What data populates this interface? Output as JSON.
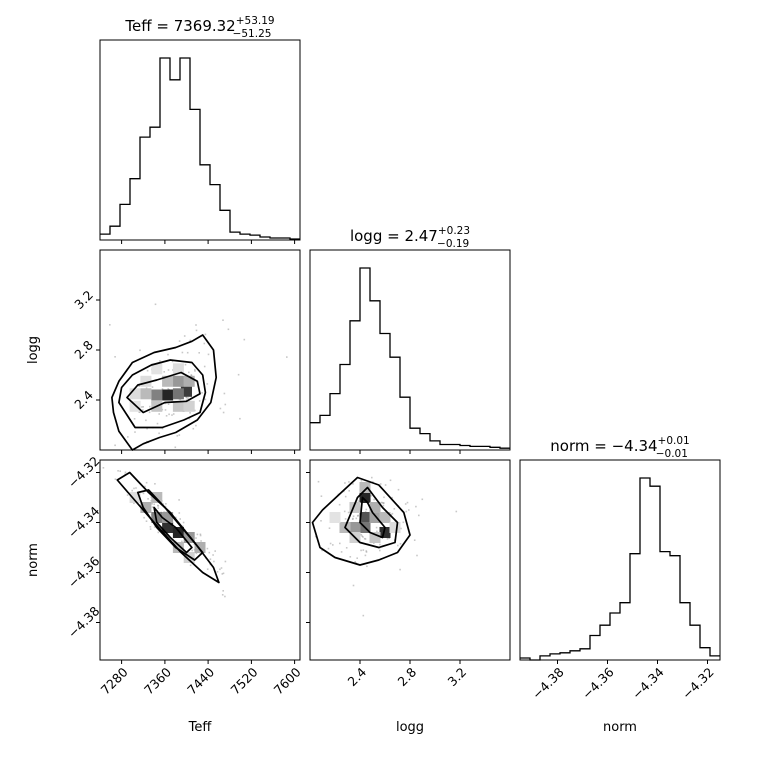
{
  "chart_data": {
    "type": "corner",
    "parameters": [
      "Teff",
      "logg",
      "norm"
    ],
    "titles": [
      {
        "param": "Teff",
        "prefix": "Teff = ",
        "value": "7369.32",
        "plus": "+53.19",
        "minus": "−51.25"
      },
      {
        "param": "logg",
        "prefix": "logg = ",
        "value": "2.47",
        "plus": "+0.23",
        "minus": "−0.19"
      },
      {
        "param": "norm",
        "prefix": "norm = ",
        "value": "−4.34",
        "plus": "+0.01",
        "minus": "−0.01"
      }
    ],
    "ranges": {
      "Teff": [
        7240,
        7610
      ],
      "logg": [
        2.0,
        3.6
      ],
      "norm": [
        -4.395,
        -4.315
      ]
    },
    "ticks": {
      "Teff": {
        "values": [
          7280,
          7360,
          7440,
          7520,
          7600
        ],
        "labels": [
          "7280",
          "7360",
          "7440",
          "7520",
          "7600"
        ]
      },
      "logg": {
        "values": [
          2.4,
          2.8,
          3.2
        ],
        "labels": [
          "2.4",
          "2.8",
          "3.2"
        ]
      },
      "norm": {
        "values": [
          -4.38,
          -4.36,
          -4.34,
          -4.32
        ],
        "labels": [
          "−4.38",
          "−4.36",
          "−4.34",
          "−4.32"
        ]
      }
    },
    "histograms": {
      "Teff": {
        "edges": [
          7240,
          7258.5,
          7277,
          7295.5,
          7314,
          7332.5,
          7351,
          7369.5,
          7388,
          7406.5,
          7425,
          7443.5,
          7462,
          7480.5,
          7499,
          7517.5,
          7536,
          7554.5,
          7573,
          7591.5,
          7610
        ],
        "counts": [
          0.03,
          0.07,
          0.18,
          0.31,
          0.52,
          0.57,
          0.92,
          0.81,
          0.92,
          0.66,
          0.38,
          0.28,
          0.15,
          0.04,
          0.03,
          0.025,
          0.015,
          0.01,
          0.01,
          0.005
        ]
      },
      "logg": {
        "edges": [
          2.0,
          2.08,
          2.16,
          2.24,
          2.32,
          2.4,
          2.48,
          2.56,
          2.64,
          2.72,
          2.8,
          2.88,
          2.96,
          3.04,
          3.12,
          3.2,
          3.28,
          3.36,
          3.44,
          3.52,
          3.6
        ],
        "counts": [
          0.15,
          0.19,
          0.31,
          0.47,
          0.71,
          1.0,
          0.82,
          0.64,
          0.51,
          0.29,
          0.12,
          0.09,
          0.05,
          0.03,
          0.03,
          0.025,
          0.02,
          0.02,
          0.015,
          0.01
        ]
      },
      "norm": {
        "edges": [
          -4.395,
          -4.391,
          -4.387,
          -4.383,
          -4.379,
          -4.375,
          -4.371,
          -4.367,
          -4.363,
          -4.359,
          -4.355,
          -4.351,
          -4.347,
          -4.343,
          -4.339,
          -4.335,
          -4.331,
          -4.327,
          -4.323,
          -4.319,
          -4.315
        ],
        "counts": [
          0.01,
          0.0,
          0.02,
          0.03,
          0.035,
          0.045,
          0.055,
          0.12,
          0.17,
          0.23,
          0.28,
          0.52,
          0.89,
          0.85,
          0.53,
          0.51,
          0.28,
          0.17,
          0.06,
          0.02
        ]
      }
    },
    "density_cells": [
      {
        "pair": "Teff-logg",
        "x": 7365,
        "y": 2.44,
        "level": 0.95
      },
      {
        "pair": "Teff-logg",
        "x": 7400,
        "y": 2.47,
        "level": 0.85
      },
      {
        "pair": "Teff-logg",
        "x": 7345,
        "y": 2.44,
        "level": 0.55
      },
      {
        "pair": "Teff-logg",
        "x": 7385,
        "y": 2.45,
        "level": 0.6
      },
      {
        "pair": "Teff-logg",
        "x": 7385,
        "y": 2.55,
        "level": 0.45
      },
      {
        "pair": "Teff-logg",
        "x": 7405,
        "y": 2.55,
        "level": 0.35
      },
      {
        "pair": "Teff-logg",
        "x": 7325,
        "y": 2.45,
        "level": 0.3
      },
      {
        "pair": "Teff-logg",
        "x": 7365,
        "y": 2.55,
        "level": 0.3
      },
      {
        "pair": "Teff-logg",
        "x": 7345,
        "y": 2.35,
        "level": 0.25
      },
      {
        "pair": "Teff-logg",
        "x": 7385,
        "y": 2.35,
        "level": 0.25
      },
      {
        "pair": "Teff-logg",
        "x": 7405,
        "y": 2.35,
        "level": 0.2
      },
      {
        "pair": "Teff-logg",
        "x": 7305,
        "y": 2.45,
        "level": 0.15
      },
      {
        "pair": "Teff-logg",
        "x": 7305,
        "y": 2.35,
        "level": 0.12
      },
      {
        "pair": "Teff-logg",
        "x": 7325,
        "y": 2.55,
        "level": 0.15
      },
      {
        "pair": "Teff-logg",
        "x": 7345,
        "y": 2.65,
        "level": 0.12
      },
      {
        "pair": "Teff-logg",
        "x": 7385,
        "y": 2.65,
        "level": 0.15
      },
      {
        "pair": "Teff-norm",
        "x": 7365,
        "y": -4.342,
        "level": 0.9
      },
      {
        "pair": "Teff-norm",
        "x": 7385,
        "y": -4.344,
        "level": 0.95
      },
      {
        "pair": "Teff-norm",
        "x": 7345,
        "y": -4.338,
        "level": 0.55
      },
      {
        "pair": "Teff-norm",
        "x": 7365,
        "y": -4.338,
        "level": 0.45
      },
      {
        "pair": "Teff-norm",
        "x": 7405,
        "y": -4.346,
        "level": 0.45
      },
      {
        "pair": "Teff-norm",
        "x": 7325,
        "y": -4.334,
        "level": 0.35
      },
      {
        "pair": "Teff-norm",
        "x": 7345,
        "y": -4.33,
        "level": 0.3
      },
      {
        "pair": "Teff-norm",
        "x": 7385,
        "y": -4.35,
        "level": 0.3
      },
      {
        "pair": "Teff-norm",
        "x": 7425,
        "y": -4.35,
        "level": 0.35
      },
      {
        "pair": "Teff-norm",
        "x": 7305,
        "y": -4.33,
        "level": 0.15
      },
      {
        "pair": "Teff-norm",
        "x": 7405,
        "y": -4.354,
        "level": 0.2
      },
      {
        "pair": "logg-norm",
        "x": 2.44,
        "y": -4.33,
        "level": 0.95
      },
      {
        "pair": "logg-norm",
        "x": 2.44,
        "y": -4.338,
        "level": 0.75
      },
      {
        "pair": "logg-norm",
        "x": 2.44,
        "y": -4.342,
        "level": 0.6
      },
      {
        "pair": "logg-norm",
        "x": 2.6,
        "y": -4.344,
        "level": 0.9
      },
      {
        "pair": "logg-norm",
        "x": 2.36,
        "y": -4.342,
        "level": 0.45
      },
      {
        "pair": "logg-norm",
        "x": 2.28,
        "y": -4.342,
        "level": 0.3
      },
      {
        "pair": "logg-norm",
        "x": 2.52,
        "y": -4.338,
        "level": 0.4
      },
      {
        "pair": "logg-norm",
        "x": 2.52,
        "y": -4.334,
        "level": 0.35
      },
      {
        "pair": "logg-norm",
        "x": 2.36,
        "y": -4.334,
        "level": 0.25
      },
      {
        "pair": "logg-norm",
        "x": 2.6,
        "y": -4.338,
        "level": 0.3
      },
      {
        "pair": "logg-norm",
        "x": 2.44,
        "y": -4.326,
        "level": 0.3
      },
      {
        "pair": "logg-norm",
        "x": 2.36,
        "y": -4.346,
        "level": 0.2
      },
      {
        "pair": "logg-norm",
        "x": 2.52,
        "y": -4.346,
        "level": 0.25
      },
      {
        "pair": "logg-norm",
        "x": 2.2,
        "y": -4.338,
        "level": 0.12
      },
      {
        "pair": "logg-norm",
        "x": 2.68,
        "y": -4.342,
        "level": 0.15
      }
    ],
    "contours": {
      "Teff-logg": [
        [
          [
            7290,
            2.42
          ],
          [
            7320,
            2.3
          ],
          [
            7360,
            2.38
          ],
          [
            7400,
            2.39
          ],
          [
            7425,
            2.45
          ],
          [
            7420,
            2.55
          ],
          [
            7390,
            2.62
          ],
          [
            7345,
            2.56
          ],
          [
            7310,
            2.52
          ]
        ],
        [
          [
            7275,
            2.38
          ],
          [
            7305,
            2.18
          ],
          [
            7355,
            2.18
          ],
          [
            7395,
            2.24
          ],
          [
            7425,
            2.3
          ],
          [
            7435,
            2.46
          ],
          [
            7430,
            2.6
          ],
          [
            7410,
            2.7
          ],
          [
            7370,
            2.72
          ],
          [
            7335,
            2.68
          ],
          [
            7300,
            2.6
          ],
          [
            7280,
            2.5
          ]
        ],
        [
          [
            7265,
            2.3
          ],
          [
            7275,
            2.15
          ],
          [
            7300,
            2.0
          ],
          [
            7320,
            2.05
          ],
          [
            7350,
            2.1
          ],
          [
            7380,
            2.14
          ],
          [
            7420,
            2.24
          ],
          [
            7445,
            2.38
          ],
          [
            7455,
            2.58
          ],
          [
            7450,
            2.8
          ],
          [
            7430,
            2.92
          ],
          [
            7410,
            2.87
          ],
          [
            7380,
            2.82
          ],
          [
            7340,
            2.78
          ],
          [
            7300,
            2.7
          ],
          [
            7275,
            2.55
          ],
          [
            7262,
            2.42
          ]
        ]
      ],
      "Teff-norm": [
        [
          [
            7340,
            -4.334
          ],
          [
            7355,
            -4.338
          ],
          [
            7380,
            -4.342
          ],
          [
            7410,
            -4.35
          ],
          [
            7400,
            -4.352
          ],
          [
            7370,
            -4.346
          ],
          [
            7345,
            -4.34
          ]
        ],
        [
          [
            7310,
            -4.328
          ],
          [
            7330,
            -4.327
          ],
          [
            7360,
            -4.334
          ],
          [
            7395,
            -4.343
          ],
          [
            7430,
            -4.352
          ],
          [
            7415,
            -4.355
          ],
          [
            7380,
            -4.35
          ],
          [
            7345,
            -4.342
          ],
          [
            7320,
            -4.334
          ]
        ],
        [
          [
            7272,
            -4.323
          ],
          [
            7295,
            -4.32
          ],
          [
            7330,
            -4.328
          ],
          [
            7370,
            -4.336
          ],
          [
            7415,
            -4.348
          ],
          [
            7450,
            -4.358
          ],
          [
            7460,
            -4.364
          ],
          [
            7430,
            -4.36
          ],
          [
            7390,
            -4.352
          ],
          [
            7340,
            -4.34
          ],
          [
            7300,
            -4.33
          ]
        ]
      ],
      "logg-norm": [
        [
          [
            2.42,
            -4.33
          ],
          [
            2.46,
            -4.332
          ],
          [
            2.5,
            -4.336
          ],
          [
            2.6,
            -4.342
          ],
          [
            2.58,
            -4.346
          ],
          [
            2.48,
            -4.344
          ],
          [
            2.4,
            -4.34
          ]
        ],
        [
          [
            2.28,
            -4.342
          ],
          [
            2.38,
            -4.33
          ],
          [
            2.46,
            -4.326
          ],
          [
            2.58,
            -4.334
          ],
          [
            2.7,
            -4.34
          ],
          [
            2.68,
            -4.348
          ],
          [
            2.55,
            -4.35
          ],
          [
            2.4,
            -4.348
          ]
        ],
        [
          [
            2.02,
            -4.34
          ],
          [
            2.1,
            -4.335
          ],
          [
            2.25,
            -4.328
          ],
          [
            2.38,
            -4.322
          ],
          [
            2.55,
            -4.325
          ],
          [
            2.75,
            -4.336
          ],
          [
            2.8,
            -4.345
          ],
          [
            2.7,
            -4.352
          ],
          [
            2.55,
            -4.355
          ],
          [
            2.4,
            -4.357
          ],
          [
            2.2,
            -4.354
          ],
          [
            2.08,
            -4.35
          ]
        ]
      ]
    },
    "scatter_seed": 7
  }
}
